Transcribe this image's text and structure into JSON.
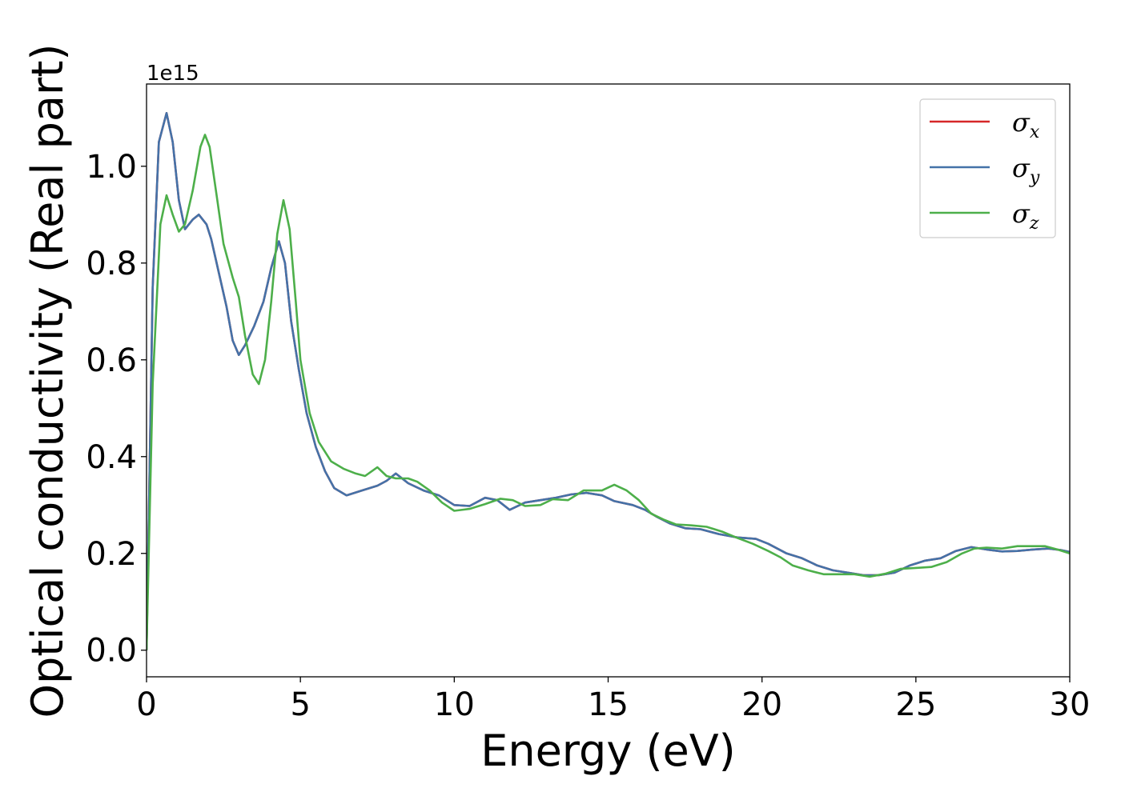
{
  "chart_data": {
    "type": "line",
    "title": "",
    "xlabel": "Energy (eV)",
    "ylabel": "Optical conductivity (Real part)",
    "y_offset_label": "1e15",
    "xlim": [
      0,
      30
    ],
    "ylim": [
      -0.055,
      1.17
    ],
    "xticks": [
      0,
      5,
      10,
      15,
      20,
      25,
      30
    ],
    "xtick_labels": [
      "0",
      "5",
      "10",
      "15",
      "20",
      "25",
      "30"
    ],
    "yticks": [
      0.0,
      0.2,
      0.4,
      0.6,
      0.8,
      1.0
    ],
    "ytick_labels": [
      "0.0",
      "0.2",
      "0.4",
      "0.6",
      "0.8",
      "1.0"
    ],
    "grid": false,
    "legend_position": "top-right",
    "series": [
      {
        "name": "σx",
        "label_base": "σ",
        "label_sub": "x",
        "color": "#d62728",
        "points": [
          [
            0,
            0
          ],
          [
            0.2,
            0.75
          ],
          [
            0.4,
            1.05
          ],
          [
            0.65,
            1.11
          ],
          [
            0.85,
            1.05
          ],
          [
            1.05,
            0.93
          ],
          [
            1.25,
            0.87
          ],
          [
            1.5,
            0.89
          ],
          [
            1.7,
            0.9
          ],
          [
            1.95,
            0.88
          ],
          [
            2.1,
            0.85
          ],
          [
            2.35,
            0.78
          ],
          [
            2.6,
            0.71
          ],
          [
            2.8,
            0.64
          ],
          [
            3.0,
            0.61
          ],
          [
            3.2,
            0.63
          ],
          [
            3.5,
            0.67
          ],
          [
            3.8,
            0.72
          ],
          [
            4.05,
            0.79
          ],
          [
            4.3,
            0.845
          ],
          [
            4.5,
            0.8
          ],
          [
            4.7,
            0.68
          ],
          [
            4.95,
            0.58
          ],
          [
            5.2,
            0.49
          ],
          [
            5.5,
            0.42
          ],
          [
            5.8,
            0.37
          ],
          [
            6.1,
            0.335
          ],
          [
            6.5,
            0.32
          ],
          [
            7.0,
            0.33
          ],
          [
            7.5,
            0.34
          ],
          [
            7.8,
            0.35
          ],
          [
            8.1,
            0.365
          ],
          [
            8.5,
            0.345
          ],
          [
            9.0,
            0.33
          ],
          [
            9.5,
            0.32
          ],
          [
            10.0,
            0.3
          ],
          [
            10.5,
            0.298
          ],
          [
            11.0,
            0.315
          ],
          [
            11.4,
            0.31
          ],
          [
            11.8,
            0.29
          ],
          [
            12.3,
            0.305
          ],
          [
            12.8,
            0.31
          ],
          [
            13.3,
            0.315
          ],
          [
            13.8,
            0.322
          ],
          [
            14.3,
            0.325
          ],
          [
            14.8,
            0.32
          ],
          [
            15.2,
            0.308
          ],
          [
            15.8,
            0.3
          ],
          [
            16.2,
            0.29
          ],
          [
            16.6,
            0.275
          ],
          [
            17.0,
            0.262
          ],
          [
            17.5,
            0.252
          ],
          [
            18.0,
            0.25
          ],
          [
            18.6,
            0.24
          ],
          [
            19.2,
            0.233
          ],
          [
            19.8,
            0.23
          ],
          [
            20.2,
            0.22
          ],
          [
            20.8,
            0.2
          ],
          [
            21.3,
            0.19
          ],
          [
            21.8,
            0.175
          ],
          [
            22.3,
            0.165
          ],
          [
            22.8,
            0.16
          ],
          [
            23.3,
            0.155
          ],
          [
            23.8,
            0.155
          ],
          [
            24.3,
            0.16
          ],
          [
            24.8,
            0.175
          ],
          [
            25.3,
            0.185
          ],
          [
            25.8,
            0.19
          ],
          [
            26.3,
            0.205
          ],
          [
            26.8,
            0.213
          ],
          [
            27.3,
            0.208
          ],
          [
            27.8,
            0.204
          ],
          [
            28.3,
            0.205
          ],
          [
            28.8,
            0.208
          ],
          [
            29.3,
            0.21
          ],
          [
            29.7,
            0.207
          ],
          [
            30.0,
            0.203
          ]
        ]
      },
      {
        "name": "σy",
        "label_base": "σ",
        "label_sub": "y",
        "color": "#4472a8",
        "points": [
          [
            0,
            0
          ],
          [
            0.2,
            0.75
          ],
          [
            0.4,
            1.05
          ],
          [
            0.65,
            1.11
          ],
          [
            0.85,
            1.05
          ],
          [
            1.05,
            0.93
          ],
          [
            1.25,
            0.87
          ],
          [
            1.5,
            0.89
          ],
          [
            1.7,
            0.9
          ],
          [
            1.95,
            0.88
          ],
          [
            2.1,
            0.85
          ],
          [
            2.35,
            0.78
          ],
          [
            2.6,
            0.71
          ],
          [
            2.8,
            0.64
          ],
          [
            3.0,
            0.61
          ],
          [
            3.2,
            0.63
          ],
          [
            3.5,
            0.67
          ],
          [
            3.8,
            0.72
          ],
          [
            4.05,
            0.79
          ],
          [
            4.3,
            0.845
          ],
          [
            4.5,
            0.8
          ],
          [
            4.7,
            0.68
          ],
          [
            4.95,
            0.58
          ],
          [
            5.2,
            0.49
          ],
          [
            5.5,
            0.42
          ],
          [
            5.8,
            0.37
          ],
          [
            6.1,
            0.335
          ],
          [
            6.5,
            0.32
          ],
          [
            7.0,
            0.33
          ],
          [
            7.5,
            0.34
          ],
          [
            7.8,
            0.35
          ],
          [
            8.1,
            0.365
          ],
          [
            8.5,
            0.345
          ],
          [
            9.0,
            0.33
          ],
          [
            9.5,
            0.32
          ],
          [
            10.0,
            0.3
          ],
          [
            10.5,
            0.298
          ],
          [
            11.0,
            0.315
          ],
          [
            11.4,
            0.31
          ],
          [
            11.8,
            0.29
          ],
          [
            12.3,
            0.305
          ],
          [
            12.8,
            0.31
          ],
          [
            13.3,
            0.315
          ],
          [
            13.8,
            0.322
          ],
          [
            14.3,
            0.325
          ],
          [
            14.8,
            0.32
          ],
          [
            15.2,
            0.308
          ],
          [
            15.8,
            0.3
          ],
          [
            16.2,
            0.29
          ],
          [
            16.6,
            0.275
          ],
          [
            17.0,
            0.262
          ],
          [
            17.5,
            0.252
          ],
          [
            18.0,
            0.25
          ],
          [
            18.6,
            0.24
          ],
          [
            19.2,
            0.233
          ],
          [
            19.8,
            0.23
          ],
          [
            20.2,
            0.22
          ],
          [
            20.8,
            0.2
          ],
          [
            21.3,
            0.19
          ],
          [
            21.8,
            0.175
          ],
          [
            22.3,
            0.165
          ],
          [
            22.8,
            0.16
          ],
          [
            23.3,
            0.155
          ],
          [
            23.8,
            0.155
          ],
          [
            24.3,
            0.16
          ],
          [
            24.8,
            0.175
          ],
          [
            25.3,
            0.185
          ],
          [
            25.8,
            0.19
          ],
          [
            26.3,
            0.205
          ],
          [
            26.8,
            0.213
          ],
          [
            27.3,
            0.208
          ],
          [
            27.8,
            0.204
          ],
          [
            28.3,
            0.205
          ],
          [
            28.8,
            0.208
          ],
          [
            29.3,
            0.21
          ],
          [
            29.7,
            0.207
          ],
          [
            30.0,
            0.203
          ]
        ]
      },
      {
        "name": "σz",
        "label_base": "σ",
        "label_sub": "z",
        "color": "#4daf4a",
        "points": [
          [
            0,
            0
          ],
          [
            0.2,
            0.55
          ],
          [
            0.45,
            0.88
          ],
          [
            0.65,
            0.94
          ],
          [
            0.85,
            0.9
          ],
          [
            1.05,
            0.865
          ],
          [
            1.25,
            0.88
          ],
          [
            1.5,
            0.95
          ],
          [
            1.75,
            1.04
          ],
          [
            1.9,
            1.065
          ],
          [
            2.05,
            1.04
          ],
          [
            2.3,
            0.93
          ],
          [
            2.5,
            0.84
          ],
          [
            2.8,
            0.77
          ],
          [
            3.0,
            0.73
          ],
          [
            3.2,
            0.65
          ],
          [
            3.45,
            0.57
          ],
          [
            3.65,
            0.55
          ],
          [
            3.85,
            0.6
          ],
          [
            4.05,
            0.72
          ],
          [
            4.25,
            0.86
          ],
          [
            4.45,
            0.93
          ],
          [
            4.65,
            0.87
          ],
          [
            4.85,
            0.72
          ],
          [
            5.0,
            0.6
          ],
          [
            5.3,
            0.49
          ],
          [
            5.6,
            0.43
          ],
          [
            6.0,
            0.39
          ],
          [
            6.4,
            0.375
          ],
          [
            6.8,
            0.365
          ],
          [
            7.1,
            0.36
          ],
          [
            7.5,
            0.378
          ],
          [
            7.8,
            0.36
          ],
          [
            8.1,
            0.355
          ],
          [
            8.5,
            0.355
          ],
          [
            8.8,
            0.348
          ],
          [
            9.2,
            0.33
          ],
          [
            9.6,
            0.305
          ],
          [
            10.0,
            0.288
          ],
          [
            10.5,
            0.292
          ],
          [
            11.0,
            0.302
          ],
          [
            11.5,
            0.313
          ],
          [
            11.9,
            0.31
          ],
          [
            12.3,
            0.298
          ],
          [
            12.8,
            0.3
          ],
          [
            13.2,
            0.312
          ],
          [
            13.7,
            0.31
          ],
          [
            14.2,
            0.33
          ],
          [
            14.8,
            0.33
          ],
          [
            15.2,
            0.342
          ],
          [
            15.6,
            0.33
          ],
          [
            16.0,
            0.31
          ],
          [
            16.4,
            0.282
          ],
          [
            16.8,
            0.27
          ],
          [
            17.2,
            0.26
          ],
          [
            17.7,
            0.258
          ],
          [
            18.2,
            0.255
          ],
          [
            18.7,
            0.245
          ],
          [
            19.2,
            0.232
          ],
          [
            19.7,
            0.22
          ],
          [
            20.2,
            0.205
          ],
          [
            20.6,
            0.192
          ],
          [
            21.0,
            0.175
          ],
          [
            21.5,
            0.165
          ],
          [
            22.0,
            0.157
          ],
          [
            22.5,
            0.157
          ],
          [
            23.0,
            0.157
          ],
          [
            23.5,
            0.152
          ],
          [
            24.0,
            0.158
          ],
          [
            24.5,
            0.168
          ],
          [
            25.0,
            0.17
          ],
          [
            25.5,
            0.172
          ],
          [
            26.0,
            0.182
          ],
          [
            26.5,
            0.2
          ],
          [
            26.9,
            0.21
          ],
          [
            27.3,
            0.212
          ],
          [
            27.8,
            0.21
          ],
          [
            28.3,
            0.215
          ],
          [
            28.8,
            0.215
          ],
          [
            29.2,
            0.215
          ],
          [
            29.6,
            0.208
          ],
          [
            30.0,
            0.2
          ]
        ]
      }
    ]
  }
}
